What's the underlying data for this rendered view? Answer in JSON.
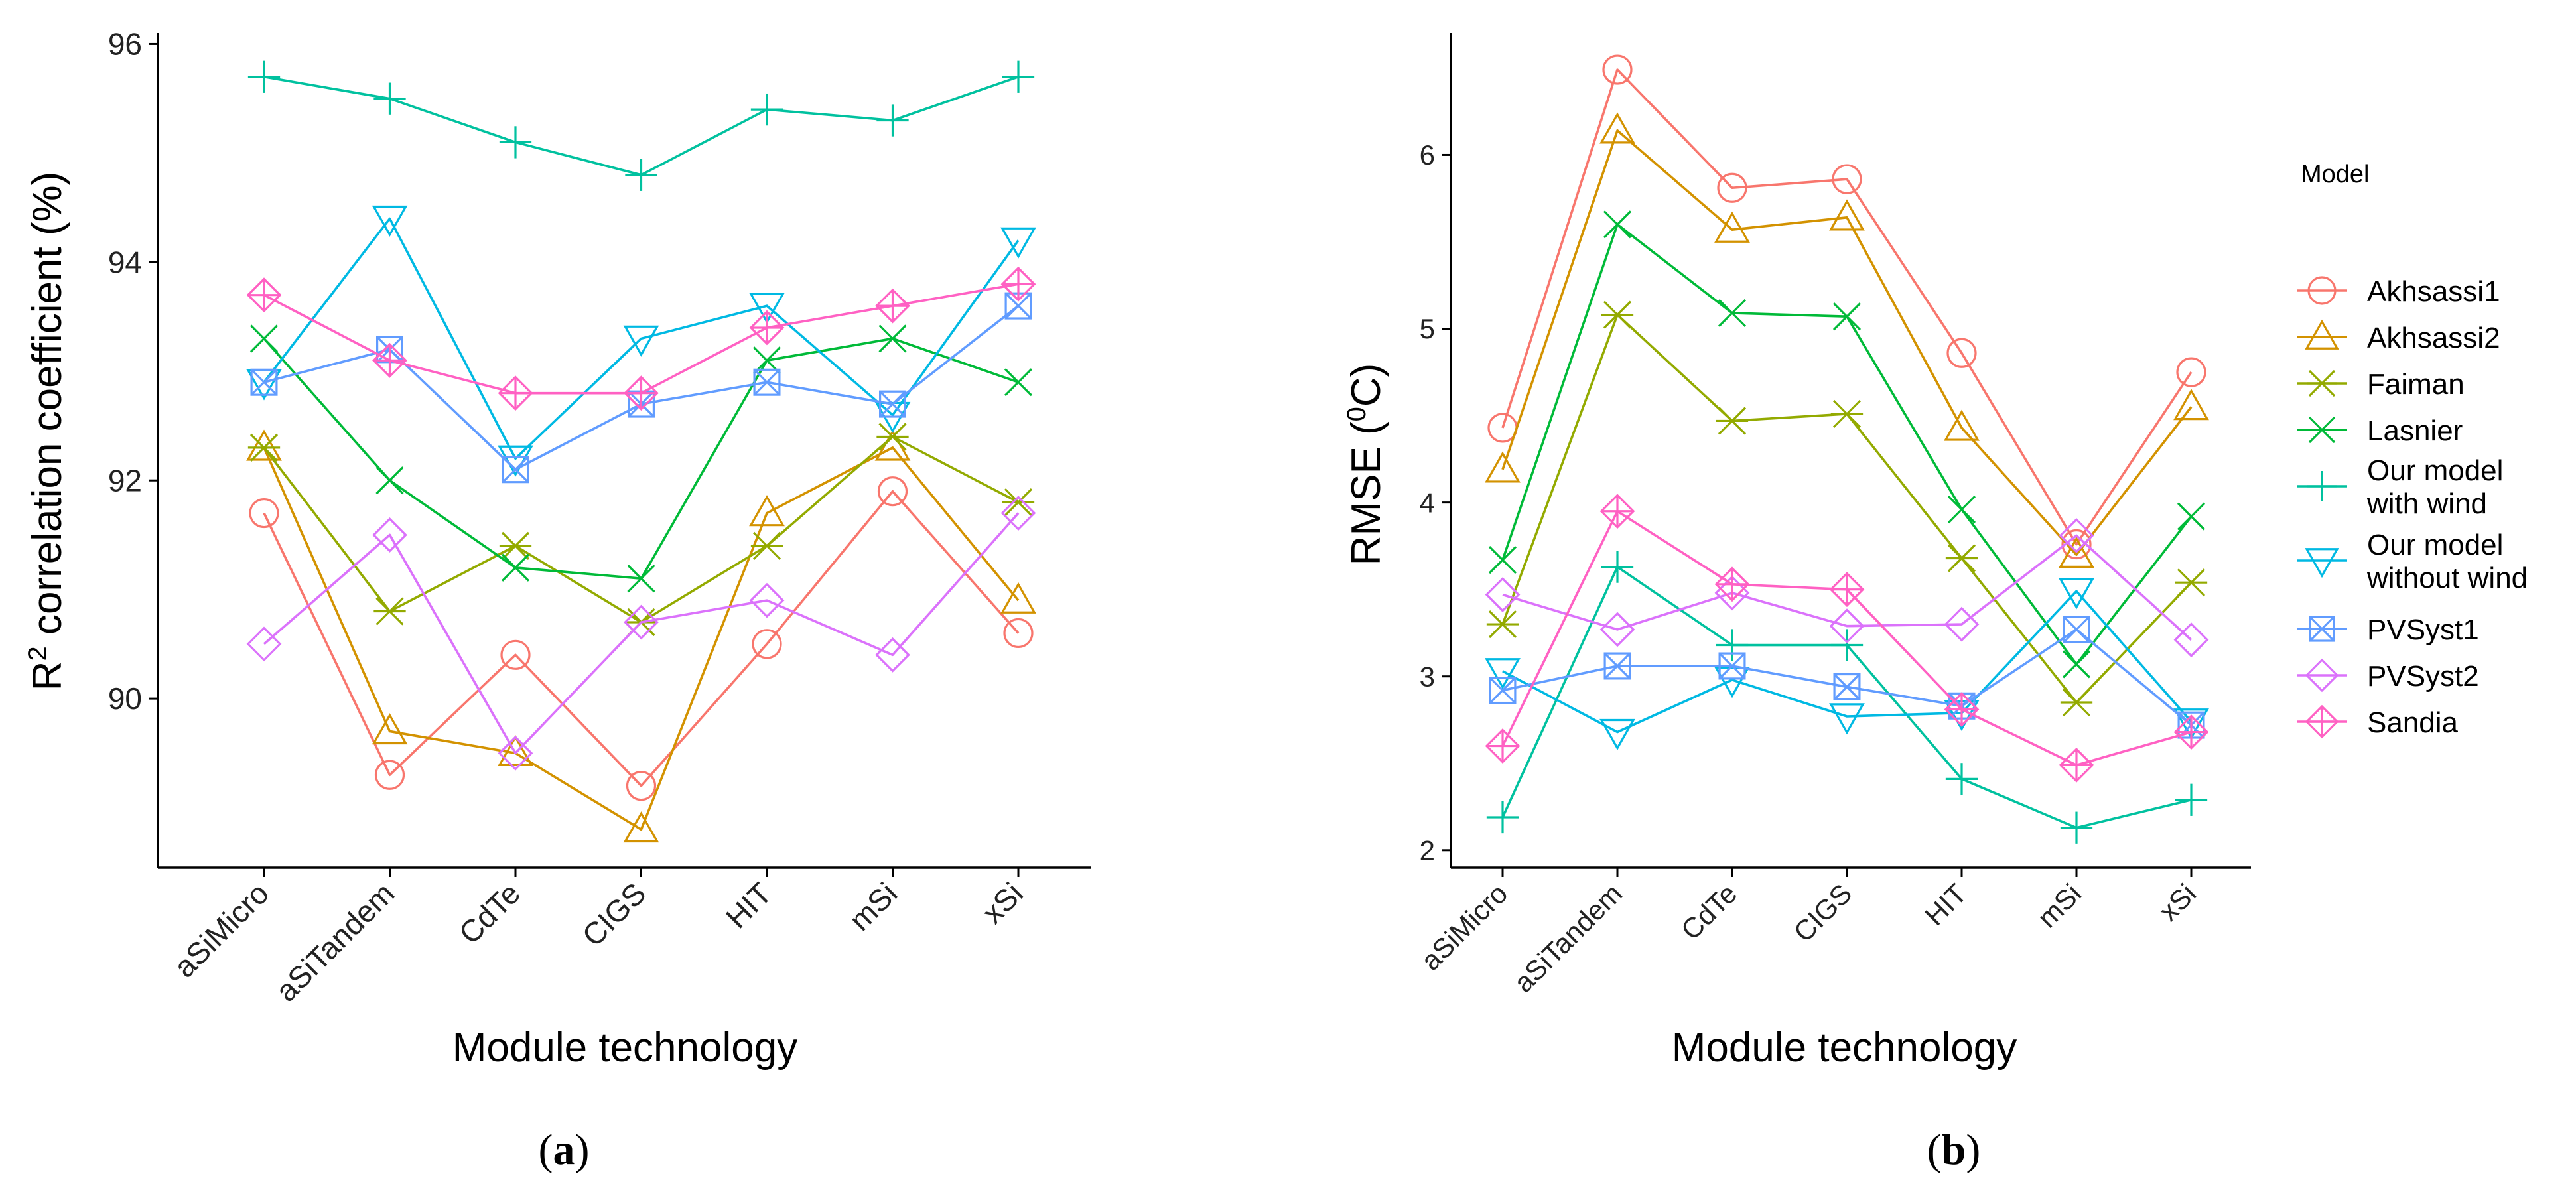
{
  "chart_data": [
    {
      "type": "line",
      "panel_label": "a",
      "xlabel": "Module technology",
      "ylabel_prefix": "R",
      "ylabel_sup": "2",
      "ylabel_suffix": " correlation coefficient (%)",
      "categories": [
        "aSiMicro",
        "aSiTandem",
        "CdTe",
        "CIGS",
        "HIT",
        "mSi",
        "xSi"
      ],
      "yticks": [
        90,
        92,
        94,
        96
      ],
      "ylim": [
        88.45,
        96.1
      ],
      "series": [
        {
          "name": "Akhsassi1",
          "values": [
            91.7,
            89.3,
            90.4,
            89.2,
            90.5,
            91.9,
            90.6
          ]
        },
        {
          "name": "Akhsassi2",
          "values": [
            92.3,
            89.7,
            89.5,
            88.8,
            91.7,
            92.3,
            90.9
          ]
        },
        {
          "name": "Faiman",
          "values": [
            92.3,
            90.8,
            91.4,
            90.7,
            91.4,
            92.4,
            91.8
          ]
        },
        {
          "name": "Lasnier",
          "values": [
            93.3,
            92.0,
            91.2,
            91.1,
            93.1,
            93.3,
            92.9
          ]
        },
        {
          "name": "Our model with wind",
          "values": [
            95.7,
            95.5,
            95.1,
            94.8,
            95.4,
            95.3,
            95.7
          ]
        },
        {
          "name": "Our model without wind",
          "values": [
            92.9,
            94.4,
            92.2,
            93.3,
            93.6,
            92.6,
            94.2
          ]
        },
        {
          "name": "PVSyst1",
          "values": [
            92.9,
            93.2,
            92.1,
            92.7,
            92.9,
            92.7,
            93.6
          ]
        },
        {
          "name": "PVSyst2",
          "values": [
            90.5,
            91.5,
            89.5,
            90.7,
            90.9,
            90.4,
            91.7
          ]
        },
        {
          "name": "Sandia",
          "values": [
            93.7,
            93.1,
            92.8,
            92.8,
            93.4,
            93.6,
            93.8
          ]
        }
      ]
    },
    {
      "type": "line",
      "panel_label": "b",
      "xlabel": "Module technology",
      "ylabel_prefix": "RMSE (",
      "ylabel_sup": "0",
      "ylabel_suffix": "C)",
      "categories": [
        "aSiMicro",
        "aSiTandem",
        "CdTe",
        "CIGS",
        "HIT",
        "mSi",
        "xSi"
      ],
      "yticks": [
        2,
        3,
        4,
        5,
        6
      ],
      "ylim": [
        1.9,
        6.7
      ],
      "series": [
        {
          "name": "Akhsassi1",
          "values": [
            4.43,
            6.49,
            5.81,
            5.86,
            4.86,
            3.76,
            4.75
          ]
        },
        {
          "name": "Akhsassi2",
          "values": [
            4.19,
            6.14,
            5.57,
            5.64,
            4.43,
            3.7,
            4.55
          ]
        },
        {
          "name": "Faiman",
          "values": [
            3.3,
            5.08,
            4.47,
            4.51,
            3.68,
            2.85,
            3.54
          ]
        },
        {
          "name": "Lasnier",
          "values": [
            3.67,
            5.6,
            5.09,
            5.07,
            3.96,
            3.07,
            3.92
          ]
        },
        {
          "name": "Our model with wind",
          "values": [
            2.19,
            3.63,
            3.18,
            3.18,
            2.41,
            2.13,
            2.29
          ]
        },
        {
          "name": "Our model without wind",
          "values": [
            3.03,
            2.68,
            2.98,
            2.77,
            2.79,
            3.49,
            2.74
          ]
        },
        {
          "name": "PVSyst1",
          "values": [
            2.92,
            3.06,
            3.06,
            2.94,
            2.83,
            3.27,
            2.72
          ]
        },
        {
          "name": "PVSyst2",
          "values": [
            3.47,
            3.27,
            3.48,
            3.29,
            3.3,
            3.81,
            3.21
          ]
        },
        {
          "name": "Sandia",
          "values": [
            2.6,
            3.95,
            3.53,
            3.5,
            2.81,
            2.49,
            2.68
          ]
        }
      ]
    }
  ],
  "legend": {
    "title": "Model",
    "placement": "right of panel b",
    "items": [
      {
        "label_lines": [
          "Akhsassi1"
        ],
        "marker": "circle",
        "color": "#F8766D"
      },
      {
        "label_lines": [
          "Akhsassi2"
        ],
        "marker": "triangle-up",
        "color": "#D39200"
      },
      {
        "label_lines": [
          "Faiman"
        ],
        "marker": "asterisk",
        "color": "#93AA00"
      },
      {
        "label_lines": [
          "Lasnier"
        ],
        "marker": "x-cross",
        "color": "#00BA38"
      },
      {
        "label_lines": [
          "Our model",
          "with wind"
        ],
        "marker": "plus",
        "color": "#00C19F"
      },
      {
        "label_lines": [
          "Our model",
          "without wind"
        ],
        "marker": "triangle-down",
        "color": "#00B9E3"
      },
      {
        "label_lines": [
          "PVSyst1"
        ],
        "marker": "square-cross",
        "color": "#619CFF"
      },
      {
        "label_lines": [
          "PVSyst2"
        ],
        "marker": "diamond",
        "color": "#DB72FB"
      },
      {
        "label_lines": [
          "Sandia"
        ],
        "marker": "diamond-plus",
        "color": "#FF61C3"
      }
    ]
  },
  "axis_color": "#000000"
}
